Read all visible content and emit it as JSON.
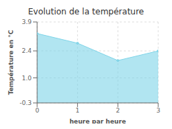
{
  "chart_data": {
    "type": "area",
    "title": "Evolution de la température",
    "xlabel": "heure par heure",
    "ylabel": "Température en °C",
    "x": [
      0,
      1,
      2,
      3
    ],
    "values": [
      3.3,
      2.8,
      1.9,
      2.4
    ],
    "color": "#7dd4e8",
    "marker": "point",
    "xlim": [
      0,
      3
    ],
    "ylim": [
      -0.3,
      3.9
    ],
    "xticks": [
      0,
      1,
      2,
      3
    ],
    "yticks": [
      -0.3,
      {
        "value": 1,
        "label": "1.0"
      },
      2.4,
      3.9
    ],
    "grid": true
  }
}
